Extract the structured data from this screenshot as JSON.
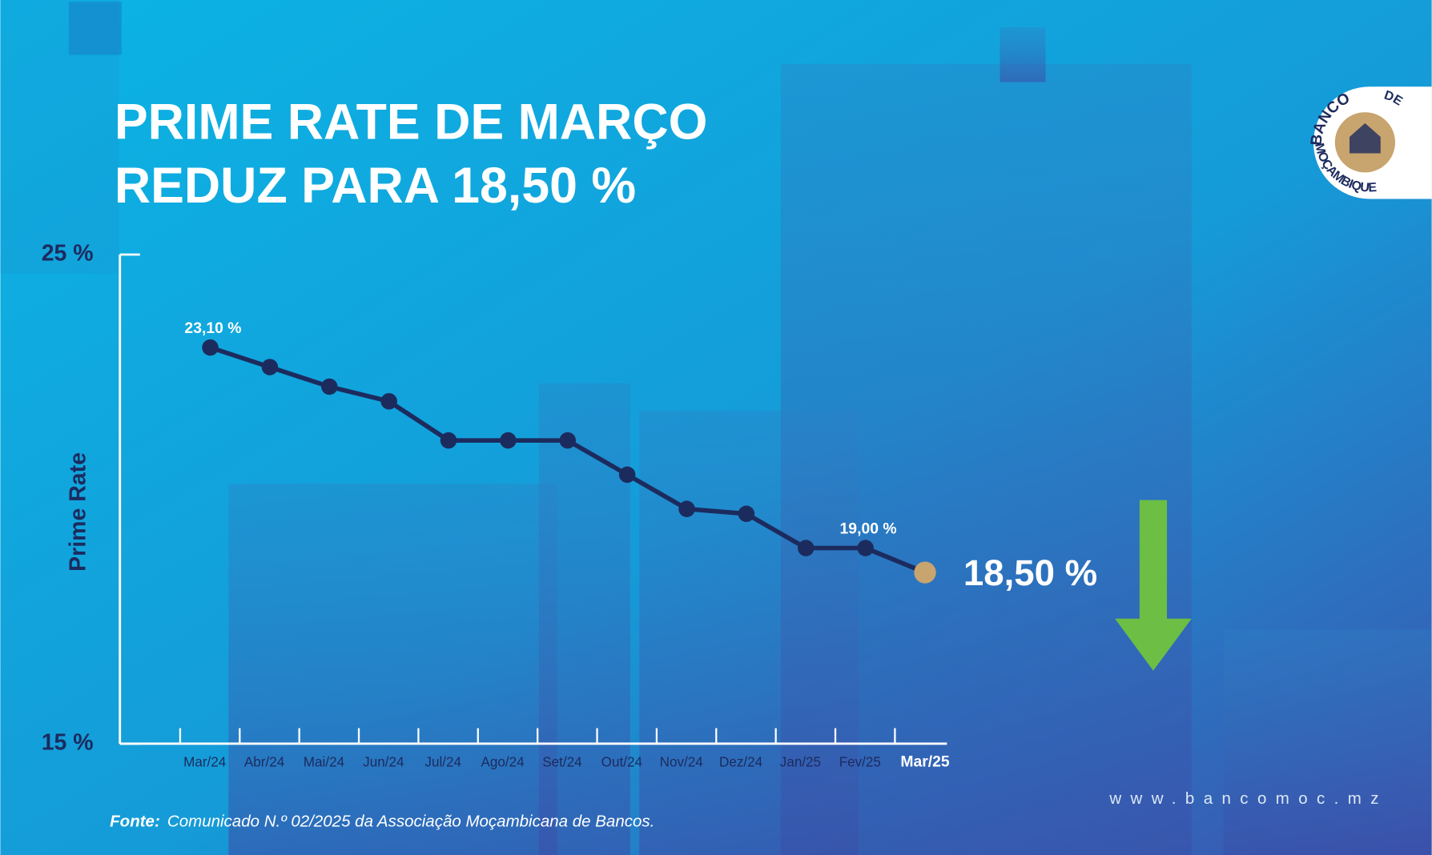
{
  "chart_data": {
    "type": "line",
    "title": [
      "PRIME RATE DE MARÇO",
      "REDUZ PARA 18,50 %"
    ],
    "ylabel": "Prime Rate",
    "categories": [
      "Mar/24",
      "Abr/24",
      "Mai/24",
      "Jun/24",
      "Jul/24",
      "Ago/24",
      "Set/24",
      "Out/24",
      "Nov/24",
      "Dez/24",
      "Jan/25",
      "Fev/25",
      "Mar/25"
    ],
    "values": [
      23.1,
      22.7,
      22.3,
      22.0,
      21.2,
      21.2,
      21.2,
      20.5,
      19.8,
      19.7,
      19.0,
      19.0,
      18.5
    ],
    "value_labels": [
      "23,10 %",
      null,
      null,
      null,
      null,
      null,
      null,
      null,
      null,
      null,
      null,
      "19,00 %",
      "18,50 %"
    ],
    "ylim": [
      15,
      25
    ],
    "yticks": [
      {
        "value": 15,
        "label": "15 %"
      },
      {
        "value": 25,
        "label": "25 %"
      }
    ],
    "color": "#1c2b5e",
    "highlight_color": "#c8a46e"
  },
  "logo": {
    "top": "BANCO",
    "right": "DE",
    "bottom": "MOÇAMBIQUE"
  },
  "footer": {
    "source_label": "Fonte:",
    "source": "Comunicado N.º 02/2025 da Associação Moçambicana de Bancos.",
    "website": "www.bancomoc.mz"
  }
}
